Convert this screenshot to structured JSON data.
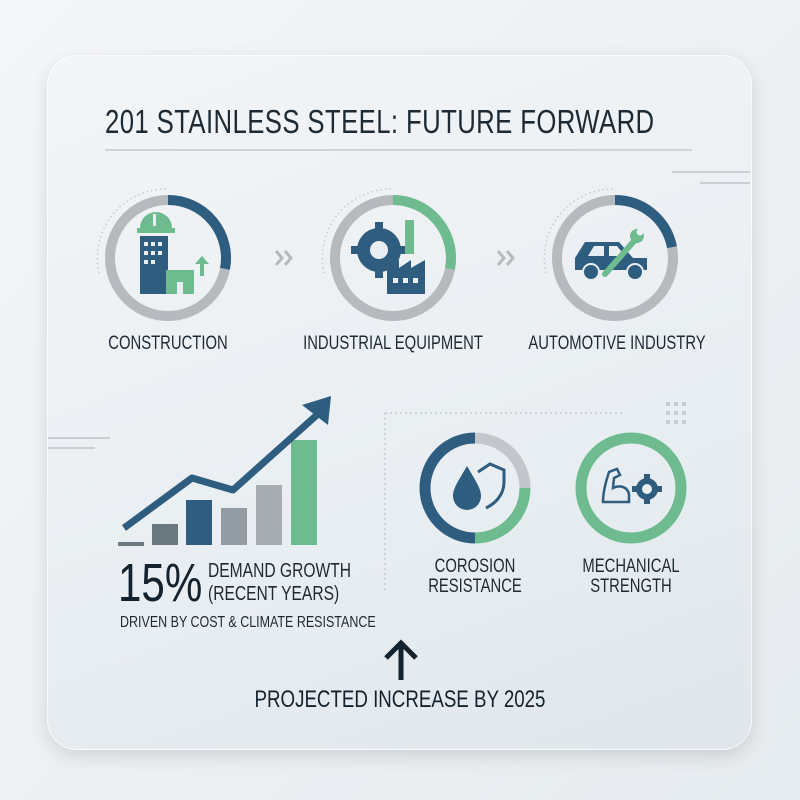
{
  "title": "201 STAINLESS STEEL: FUTURE FORWARD",
  "colors": {
    "primary": "#2f5d80",
    "accent": "#6dbb8f",
    "neutral": "#b6babe",
    "text": "#1d2a34"
  },
  "sectors": [
    {
      "label": "CONSTRUCTION",
      "icon": "building-hardhat-icon",
      "ring_fraction": 0.28,
      "ring_color": "#2f5d80"
    },
    {
      "label": "INDUSTRIAL EQUIPMENT",
      "icon": "gear-factory-icon",
      "ring_fraction": 0.28,
      "ring_color": "#6dbb8f"
    },
    {
      "label": "AUTOMOTIVE INDUSTRY",
      "icon": "car-wrench-icon",
      "ring_fraction": 0.22,
      "ring_color": "#2f5d80"
    }
  ],
  "flow_separator_icon": "double-chevron-right-icon",
  "growth": {
    "value": "15%",
    "label_line1": "DEMAND GROWTH",
    "label_line2": "(RECENT YEARS)",
    "note": "DRIVEN BY COST & CLIMATE RESISTANCE",
    "icon": "rising-bar-chart-icon"
  },
  "features": [
    {
      "line1": "COROSION",
      "line2": "RESISTANCE",
      "icon": "water-drop-shield-icon"
    },
    {
      "line1": "MECHANICAL",
      "line2": "STRENGTH",
      "icon": "muscle-gear-icon"
    }
  ],
  "projection": {
    "label": "PROJECTED INCREASE BY 2025",
    "icon": "arrow-up-icon"
  }
}
